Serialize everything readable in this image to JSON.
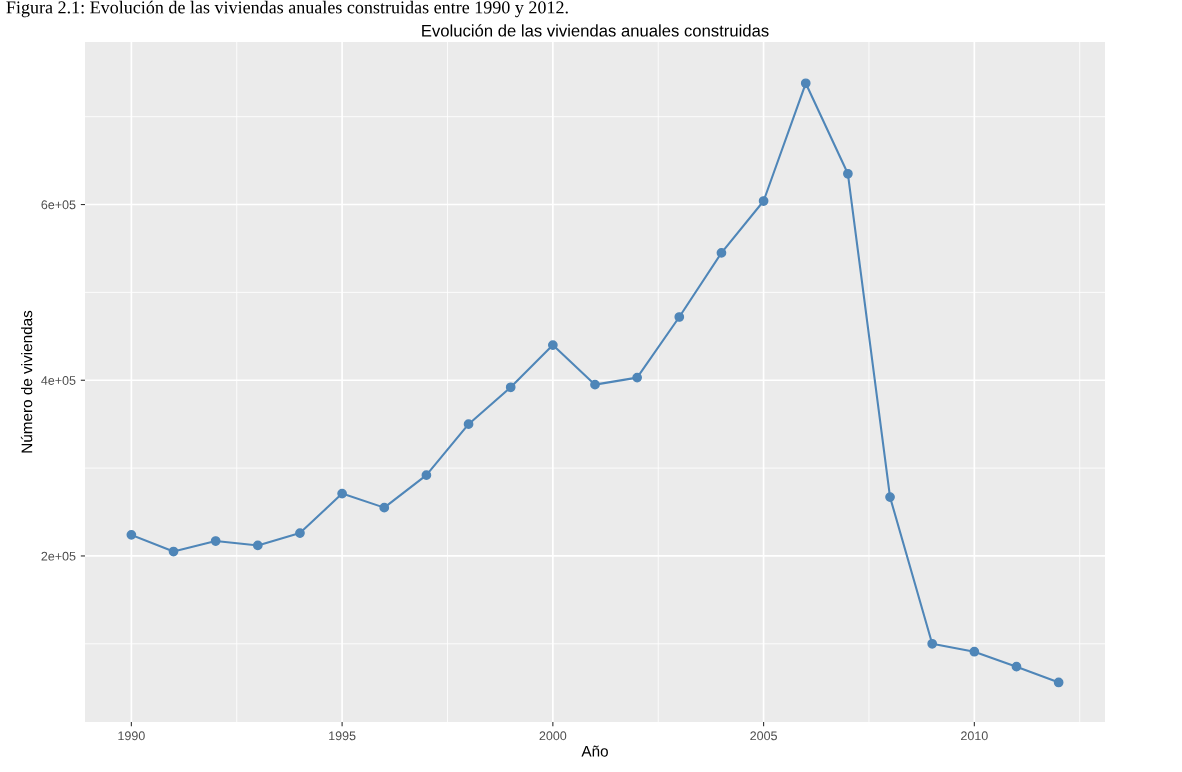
{
  "chart_data": {
    "type": "line",
    "title": "Evolución de las viviendas anuales construidas",
    "xlabel": "Año",
    "ylabel": "Número de viviendas",
    "annotations": [
      "Figura 2.1: Evolución de las viviendas anuales construidas entre 1990 y 2012."
    ],
    "x": [
      1990,
      1991,
      1992,
      1993,
      1994,
      1995,
      1996,
      1997,
      1998,
      1999,
      2000,
      2001,
      2002,
      2003,
      2004,
      2005,
      2006,
      2007,
      2008,
      2009,
      2010,
      2011,
      2012
    ],
    "series": [
      {
        "color": "#4f86b8",
        "values": [
          224000,
          205000,
          217000,
          212000,
          226000,
          271000,
          255000,
          292000,
          350000,
          392000,
          440000,
          395000,
          403000,
          472000,
          545000,
          604000,
          738000,
          635000,
          267000,
          100000,
          91000,
          74000,
          56000
        ]
      }
    ],
    "xlim": [
      1988.9,
      2013.1
    ],
    "xticks": [
      1990,
      1995,
      2000,
      2005,
      2010
    ],
    "ylim": [
      11000,
      785000
    ],
    "yticks": [
      {
        "value": 200000,
        "label": "2e+05"
      },
      {
        "value": 400000,
        "label": "4e+05"
      },
      {
        "value": 600000,
        "label": "6e+05"
      }
    ],
    "grid": true,
    "marker": "circle",
    "line_style": "solid"
  }
}
